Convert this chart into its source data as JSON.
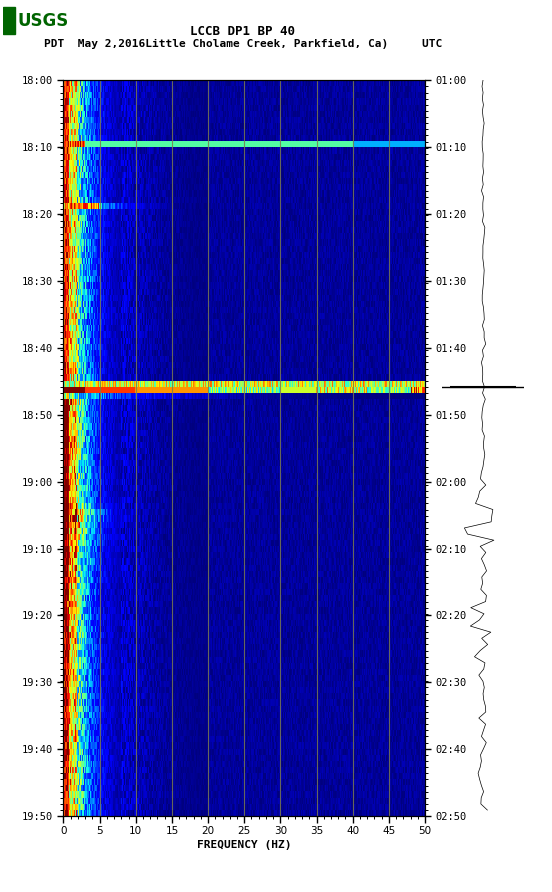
{
  "title_line1": "LCCB DP1 BP 40",
  "title_line2": "PDT  May 2,2016Little Cholame Creek, Parkfield, Ca)     UTC",
  "xlabel": "FREQUENCY (HZ)",
  "freq_min": 0,
  "freq_max": 50,
  "time_left_labels": [
    "18:00",
    "18:10",
    "18:20",
    "18:30",
    "18:40",
    "18:50",
    "19:00",
    "19:10",
    "19:20",
    "19:30",
    "19:40",
    "19:50"
  ],
  "time_right_labels": [
    "01:00",
    "01:10",
    "01:20",
    "01:30",
    "01:40",
    "01:50",
    "02:00",
    "02:10",
    "02:20",
    "02:30",
    "02:40",
    "02:50"
  ],
  "n_time_steps": 120,
  "n_freq_steps": 500,
  "background_color": "#ffffff",
  "spec_bg_color": "#00008B",
  "grid_color": "#7a7a50",
  "waveform_color": "#000000",
  "usgs_green": "#006400",
  "fig_width": 5.52,
  "fig_height": 8.92
}
